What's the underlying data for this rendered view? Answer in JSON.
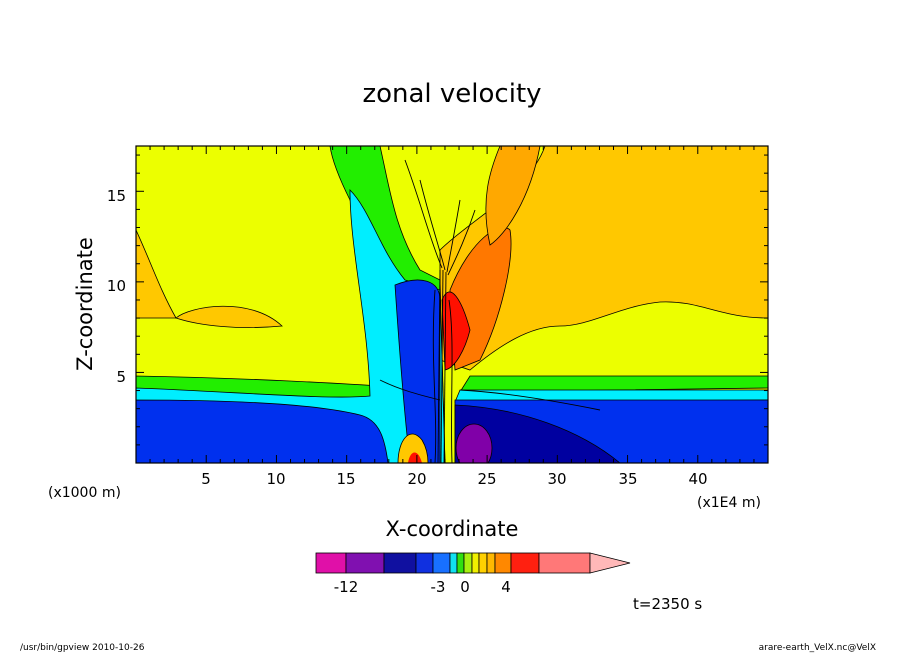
{
  "chart_data": {
    "type": "heatmap",
    "title": "zonal velocity",
    "xlabel": "X-coordinate",
    "ylabel": "Z-coordinate",
    "x_unit_left": "(x1000 m)",
    "x_unit_right": "(x1E4 m)",
    "xlim": [
      0,
      45
    ],
    "ylim": [
      0,
      17.5
    ],
    "x_ticks": [
      "5",
      "10",
      "15",
      "20",
      "25",
      "30",
      "35",
      "40"
    ],
    "x_tick_values": [
      5,
      10,
      15,
      20,
      25,
      30,
      35,
      40
    ],
    "y_ticks": [
      "5",
      "10",
      "15"
    ],
    "y_tick_values": [
      5,
      10,
      15
    ],
    "time_label": "t=2350 s",
    "colorbar": {
      "labels": [
        "-12",
        "-3",
        "0",
        "4"
      ],
      "colors": [
        "#e010a8",
        "#8010b0",
        "#1010a0",
        "#1030e0",
        "#1870ff",
        "#10e0f0",
        "#30e010",
        "#a8f010",
        "#f0f000",
        "#ffd000",
        "#ffb800",
        "#ff8800",
        "#ff2010",
        "#ff7878",
        "#ffb8b8"
      ]
    },
    "contour_fields": [
      {
        "name": "background_upper",
        "color": "#ecff00"
      },
      {
        "name": "upper_orange",
        "color": "#ffc800"
      },
      {
        "name": "green_band",
        "color": "#22ee00"
      },
      {
        "name": "cyan_band",
        "color": "#00eeff"
      },
      {
        "name": "blue_lower",
        "color": "#0030ee"
      },
      {
        "name": "navy_core",
        "color": "#0000a0"
      },
      {
        "name": "purple_core",
        "color": "#8000a8"
      },
      {
        "name": "red_core",
        "color": "#ff1000"
      },
      {
        "name": "dark_orange",
        "color": "#ff7800"
      },
      {
        "name": "light_orange",
        "color": "#ffa800"
      }
    ]
  },
  "footer": {
    "left": "/usr/bin/gpview   2010-10-26",
    "right": "arare-earth_VelX.nc@VelX"
  }
}
